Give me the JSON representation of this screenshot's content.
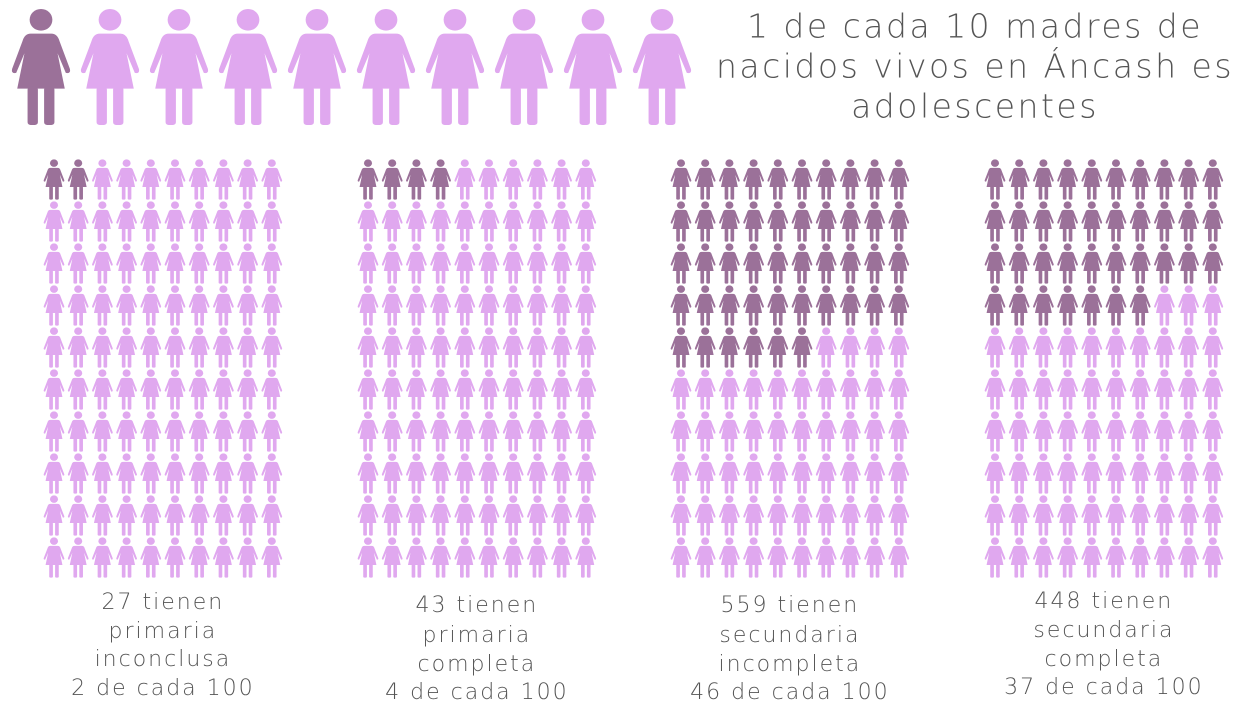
{
  "chart_data": [
    {
      "type": "pictogram",
      "title": [
        "1 de cada 10 madres de",
        "nacidos vivos en Áncash es",
        "adolescentes"
      ],
      "value": 1,
      "total": 10,
      "color": "#9b7199",
      "rest_color": "#e0a8ef"
    },
    {
      "type": "pictogram",
      "caption": [
        "27 tienen",
        "primaria",
        "inconclusa",
        "2 de cada 100"
      ],
      "value": 2,
      "total": 100,
      "color": "#9b7199",
      "rest_color": "#e0a8ef"
    },
    {
      "type": "pictogram",
      "caption": [
        "43 tienen",
        "primaria",
        "completa",
        "4 de cada 100"
      ],
      "value": 4,
      "total": 100,
      "color": "#9b7199",
      "rest_color": "#e0a8ef"
    },
    {
      "type": "pictogram",
      "caption": [
        "559 tienen",
        "secundaria",
        "incompleta",
        "46 de cada 100"
      ],
      "value": 46,
      "total": 100,
      "color": "#9b7199",
      "rest_color": "#e0a8ef"
    },
    {
      "type": "pictogram",
      "caption": [
        "448 tienen",
        "secundaria",
        "completa",
        "37 de cada 100"
      ],
      "value": 37,
      "total": 100,
      "color": "#9b7199",
      "rest_color": "#e0a8ef"
    }
  ]
}
